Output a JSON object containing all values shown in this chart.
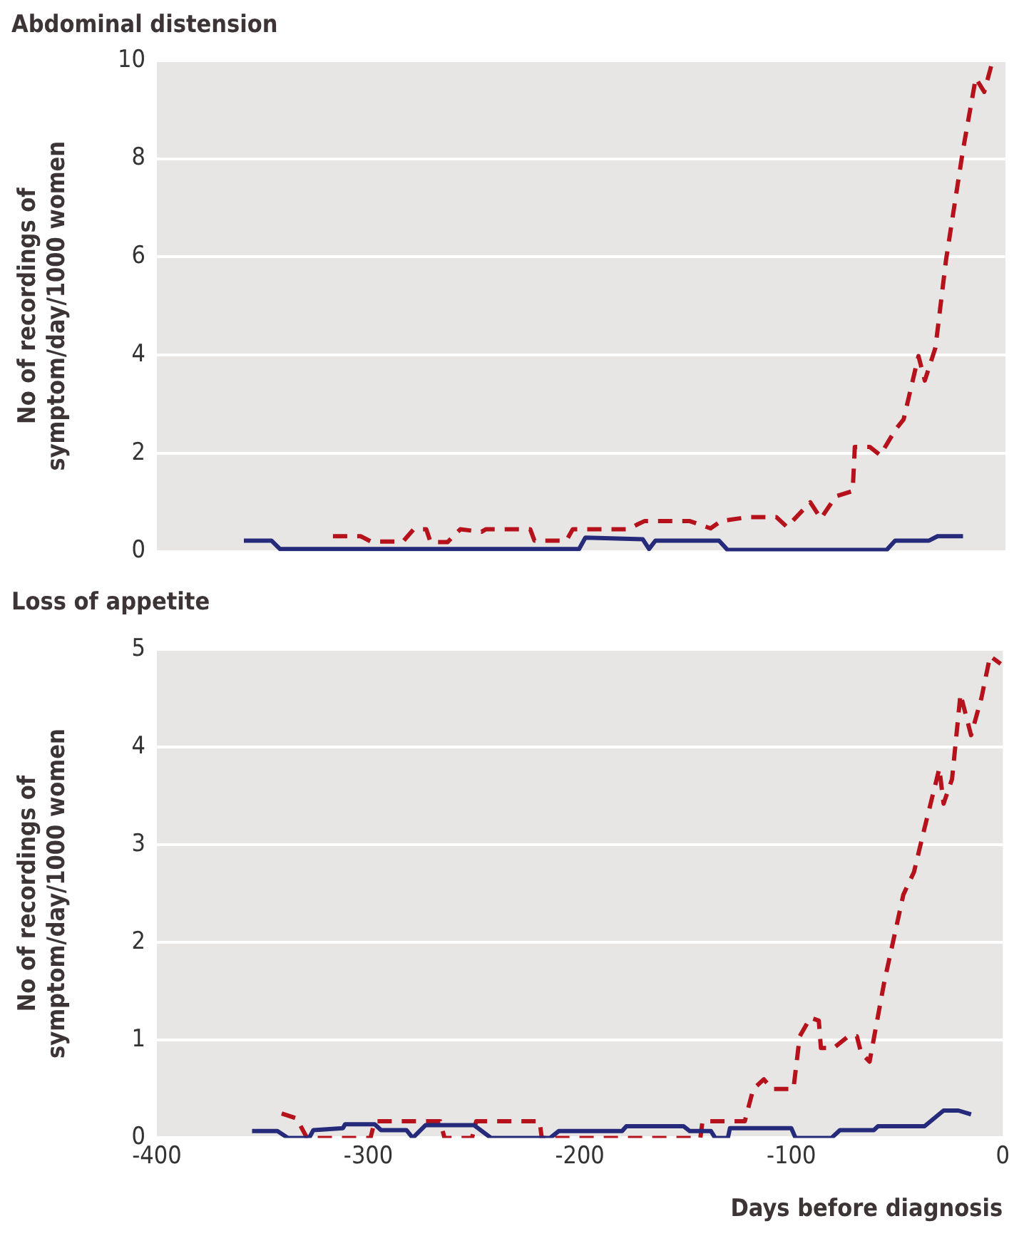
{
  "chart_data": [
    {
      "type": "line",
      "title": "Abdominal distension",
      "ylabel": "No of recordings of symptom/day/1000 women",
      "xlim": [
        -400,
        0
      ],
      "xticks": [
        -400,
        -300,
        -200,
        -100,
        0
      ],
      "ylim": [
        0,
        10
      ],
      "yticks": [
        0,
        2,
        4,
        6,
        8,
        10
      ],
      "grid": "y",
      "tick_labels": "y",
      "marker": "none",
      "series": [
        {
          "color": "#252a7a",
          "line_style": "solid",
          "x": [
            -359,
            -346,
            -342,
            -201,
            -198,
            -171,
            -168,
            -165,
            -135,
            -131,
            -56,
            -52,
            -36,
            -32,
            -20
          ],
          "values": [
            0.22,
            0.22,
            0.05,
            0.05,
            0.28,
            0.25,
            0.05,
            0.22,
            0.22,
            0.03,
            0.03,
            0.22,
            0.22,
            0.31,
            0.31
          ]
        },
        {
          "color": "#b5121b",
          "line_style": "dashed",
          "x": [
            -317,
            -304,
            -299,
            -284,
            -279,
            -273,
            -271,
            -263,
            -257,
            -247,
            -245,
            -224,
            -222,
            -207,
            -204,
            -178,
            -173,
            -170,
            -149,
            -139,
            -134,
            -121,
            -108,
            -103,
            -92,
            -87,
            -80,
            -72,
            -71,
            -64,
            -59,
            -52,
            -48,
            -41,
            -38,
            -33,
            -28,
            -20,
            -14,
            -10,
            -6
          ],
          "values": [
            0.31,
            0.31,
            0.2,
            0.2,
            0.45,
            0.45,
            0.19,
            0.19,
            0.45,
            0.4,
            0.45,
            0.45,
            0.22,
            0.22,
            0.45,
            0.45,
            0.56,
            0.62,
            0.62,
            0.47,
            0.62,
            0.7,
            0.7,
            0.5,
            1.0,
            0.67,
            1.12,
            1.23,
            2.13,
            2.13,
            1.96,
            2.47,
            2.69,
            3.98,
            3.48,
            4.15,
            5.94,
            8.18,
            9.64,
            9.36,
            10
          ]
        }
      ]
    },
    {
      "type": "line",
      "title": "Loss of appetite",
      "xlabel": "Days before diagnosis",
      "ylabel": "No of recordings of symptom/day/1000 women",
      "xlim": [
        -400,
        0
      ],
      "xticks": [
        -400,
        -300,
        -200,
        -100,
        0
      ],
      "ylim": [
        0,
        5
      ],
      "yticks": [
        0,
        1,
        2,
        3,
        4,
        5
      ],
      "grid": "y",
      "marker": "none",
      "series": [
        {
          "color": "#252a7a",
          "line_style": "solid",
          "x": [
            -355,
            -343,
            -338,
            -328,
            -326,
            -312,
            -311,
            -297,
            -294,
            -282,
            -279,
            -273,
            -250,
            -242,
            -214,
            -210,
            -180,
            -178,
            -151,
            -148,
            -138,
            -136,
            -130,
            -129,
            -100,
            -98,
            -81,
            -77,
            -61,
            -59,
            -37,
            -28,
            -21,
            -15
          ],
          "values": [
            0.07,
            0.07,
            0,
            0,
            0.08,
            0.1,
            0.14,
            0.14,
            0.08,
            0.08,
            0,
            0.13,
            0.13,
            0,
            0,
            0.07,
            0.07,
            0.12,
            0.12,
            0.07,
            0.07,
            0,
            0,
            0.1,
            0.1,
            0,
            0,
            0.08,
            0.08,
            0.12,
            0.12,
            0.28,
            0.28,
            0.24
          ]
        },
        {
          "color": "#b5121b",
          "line_style": "dashed",
          "x": [
            -341,
            -334,
            -329,
            -299,
            -297,
            -266,
            -264,
            -251,
            -249,
            -219,
            -218,
            -143,
            -142,
            -122,
            -118,
            -113,
            -109,
            -99,
            -96,
            -91,
            -87,
            -86,
            -80,
            -73,
            -69,
            -67,
            -63,
            -56,
            -47,
            -42,
            -37,
            -30,
            -28,
            -24,
            -20,
            -15,
            -10,
            -6,
            -1
          ],
          "values": [
            0.25,
            0.2,
            0,
            0,
            0.17,
            0.17,
            0,
            0,
            0.17,
            0.17,
            0,
            0,
            0.17,
            0.17,
            0.5,
            0.6,
            0.5,
            0.5,
            1.04,
            1.23,
            1.2,
            0.92,
            0.92,
            1.04,
            1.04,
            0.87,
            0.78,
            1.6,
            2.49,
            2.72,
            3.17,
            3.78,
            3.42,
            3.67,
            4.54,
            4.12,
            4.51,
            4.93,
            4.85
          ]
        }
      ]
    }
  ]
}
